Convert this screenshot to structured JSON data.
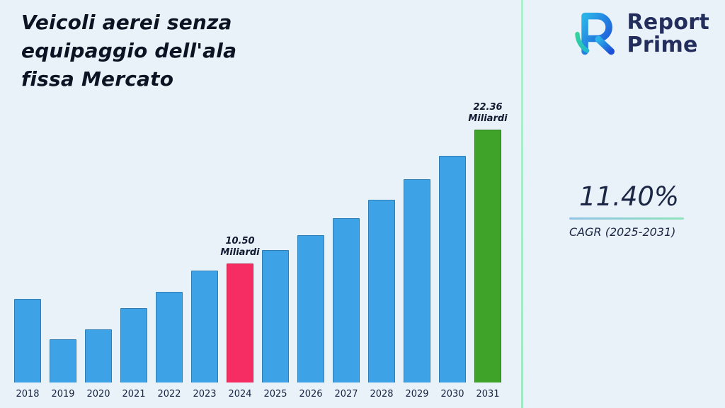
{
  "page": {
    "background": "#e9f1f9",
    "divider_color": "#a9ecc9"
  },
  "header": {
    "title_lines": [
      "Veicoli aerei senza",
      "equipaggio dell'ala",
      "fissa Mercato"
    ]
  },
  "brand": {
    "line1": "Report",
    "line2": "Prime"
  },
  "stats": {
    "cagr_value": "11.40%",
    "cagr_label": "CAGR (2025-2031)"
  },
  "chart_data": {
    "type": "bar",
    "title": "Veicoli aerei senza equipaggio dell'ala fissa Mercato",
    "unit_label": "Miliardi",
    "categories": [
      "2018",
      "2019",
      "2020",
      "2021",
      "2022",
      "2023",
      "2024",
      "2025",
      "2026",
      "2027",
      "2028",
      "2029",
      "2030",
      "2031"
    ],
    "values": [
      7.4,
      3.8,
      4.7,
      6.6,
      8.0,
      9.9,
      10.5,
      11.7,
      13.03,
      14.52,
      16.17,
      18.01,
      20.07,
      22.36
    ],
    "ylim": [
      0,
      23.5
    ],
    "grid": false,
    "legend": false,
    "xlabel": "",
    "ylabel": "",
    "bar_colors": {
      "default": "#3da2e6",
      "2024": "#f62d63",
      "2031": "#3fa32a"
    },
    "annotations": [
      {
        "category": "2024",
        "value_label": "10.50",
        "unit_label": "Miliardi"
      },
      {
        "category": "2031",
        "value_label": "22.36",
        "unit_label": "Miliardi"
      }
    ]
  }
}
